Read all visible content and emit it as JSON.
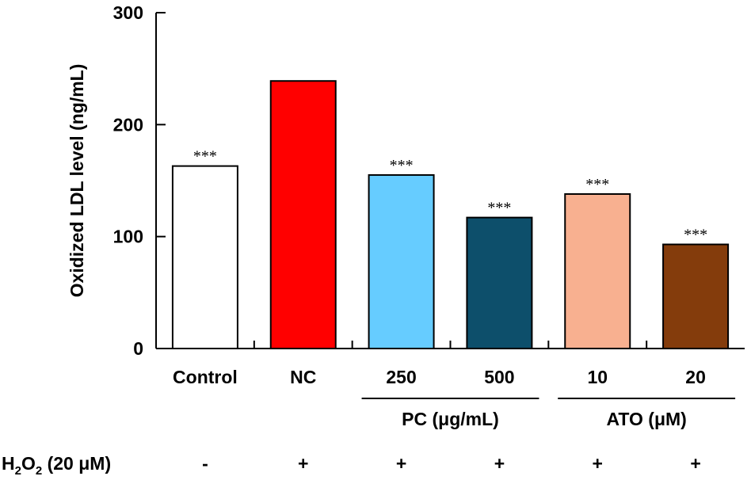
{
  "chart_data": {
    "type": "bar",
    "ylabel": "Oxidized LDL level (ng/mL)",
    "ylim": [
      0,
      300
    ],
    "yticks": [
      0,
      100,
      200,
      300
    ],
    "categories": [
      "Control",
      "NC",
      "250",
      "500",
      "10",
      "20"
    ],
    "values": [
      163,
      239,
      155,
      117,
      138,
      93
    ],
    "colors": [
      "#ffffff",
      "#ff0000",
      "#66ccff",
      "#0d4f6b",
      "#f8b090",
      "#843c0c"
    ],
    "significance": [
      "***",
      "",
      "***",
      "***",
      "***",
      "***"
    ],
    "groups": [
      {
        "label": "PC (μg/mL)",
        "from": 2,
        "to": 3
      },
      {
        "label": "ATO (μM)",
        "from": 4,
        "to": 5
      }
    ],
    "treatment": {
      "label_base": "H",
      "label_sub1": "2",
      "label_mid": "O",
      "label_sub2": "2",
      "label_rest": " (20 μM)",
      "values": [
        "-",
        "+",
        "+",
        "+",
        "+",
        "+"
      ]
    }
  }
}
